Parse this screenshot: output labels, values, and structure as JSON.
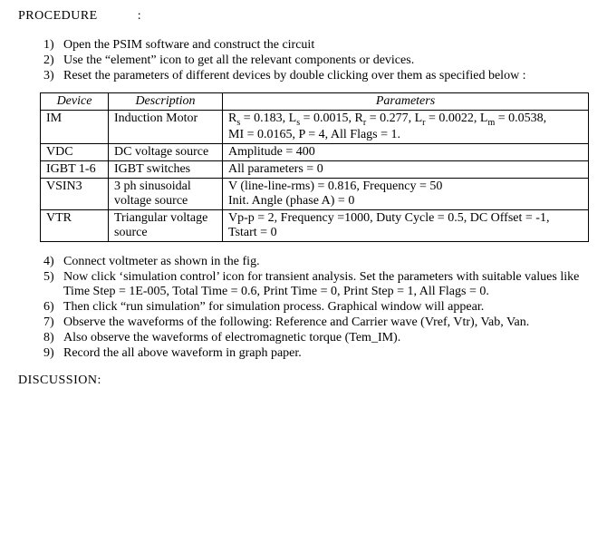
{
  "heading": "PROCEDURE",
  "headingColon": ":",
  "steps1": [
    {
      "n": "1)",
      "t": "Open the PSIM software and construct the circuit"
    },
    {
      "n": "2)",
      "t": "Use the “element” icon to get all the relevant components or devices."
    },
    {
      "n": "3)",
      "t": "Reset the parameters of different devices by double clicking over them as specified below :"
    }
  ],
  "table": {
    "headers": [
      "Device",
      "Description",
      "Parameters"
    ],
    "rows": [
      {
        "device": "IM",
        "desc": "Induction Motor",
        "paramsHtml": "R<span class=\"sub\">s</span> = 0.183, L<span class=\"sub\">s</span> = 0.0015, R<span class=\"sub\">r</span> = 0.277, L<span class=\"sub\">r</span> = 0.0022, L<span class=\"sub\">m</span> = 0.0538,<br>MI = 0.0165, P = 4, All Flags = 1."
      },
      {
        "device": "VDC",
        "desc": "DC voltage source",
        "paramsHtml": "Amplitude = 400"
      },
      {
        "device": "IGBT 1-6",
        "desc": "IGBT switches",
        "paramsHtml": "All parameters = 0"
      },
      {
        "device": "VSIN3",
        "desc": "3 ph sinusoidal voltage source",
        "paramsHtml": "V (line-line-rms) = 0.816, Frequency = 50<br>Init. Angle (phase A) = 0"
      },
      {
        "device": "VTR",
        "desc": "Triangular voltage source",
        "paramsHtml": "Vp-p = 2, Frequency =1000, Duty Cycle = 0.5, DC Offset = -1,<br>Tstart = 0"
      }
    ]
  },
  "steps2": [
    {
      "n": "4)",
      "t": "Connect voltmeter as shown in the fig."
    },
    {
      "n": "5)",
      "t": "Now click ‘simulation control’ icon for transient analysis. Set the parameters with suitable values like Time Step = 1E-005, Total Time = 0.6, Print Time = 0, Print Step = 1, All Flags = 0."
    },
    {
      "n": "6)",
      "t": "Then click “run simulation” for simulation process. Graphical window will appear."
    },
    {
      "n": "7)",
      "t": "Observe the waveforms of the following: Reference and Carrier wave (Vref, Vtr), Vab, Van."
    },
    {
      "n": "8)",
      "t": "Also observe the waveforms of electromagnetic torque (Tem_IM)."
    },
    {
      "n": "9)",
      "t": "Record the all above waveform in graph paper."
    }
  ],
  "discussion": "DISCUSSION:"
}
